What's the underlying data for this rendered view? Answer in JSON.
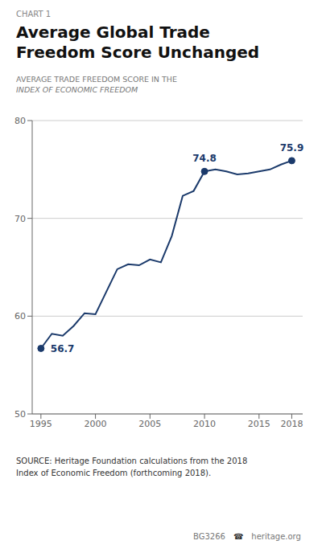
{
  "chart_data": {
    "type": "line",
    "chart_label": "CHART 1",
    "title": "Average Global Trade\nFreedom Score Unchanged",
    "subtitle": [
      "AVERAGE TRADE FREEDOM SCORE IN THE",
      "INDEX OF ECONOMIC FREEDOM"
    ],
    "x": [
      1995,
      1996,
      1997,
      1998,
      1999,
      2000,
      2001,
      2002,
      2003,
      2004,
      2005,
      2006,
      2007,
      2008,
      2009,
      2010,
      2011,
      2012,
      2013,
      2014,
      2015,
      2016,
      2017,
      2018
    ],
    "values": [
      56.7,
      58.2,
      58.0,
      59.0,
      60.3,
      60.2,
      62.5,
      64.8,
      65.3,
      65.2,
      65.8,
      65.5,
      68.2,
      72.3,
      72.8,
      74.8,
      75.0,
      74.8,
      74.5,
      74.6,
      74.8,
      75.0,
      75.5,
      75.9
    ],
    "color": "#1b3a6b",
    "marker": "none",
    "xlim": [
      1994.2,
      2019.0
    ],
    "xticks": [
      1995,
      2000,
      2005,
      2010,
      2015,
      2018
    ],
    "ylim": [
      50,
      80
    ],
    "yticks": [
      50,
      60,
      70,
      80
    ],
    "grid": true,
    "annotations": [
      {
        "x": 1995,
        "y": 56.7,
        "label": "56.7"
      },
      {
        "x": 2010,
        "y": 74.8,
        "label": "74.8"
      },
      {
        "x": 2018,
        "y": 75.9,
        "label": "75.9"
      }
    ],
    "source": [
      "SOURCE: Heritage Foundation calculations from the 2018",
      "Index of Economic Freedom (forthcoming 2018)."
    ],
    "footer": [
      "BG3266",
      "☎",
      "heritage.org"
    ]
  }
}
